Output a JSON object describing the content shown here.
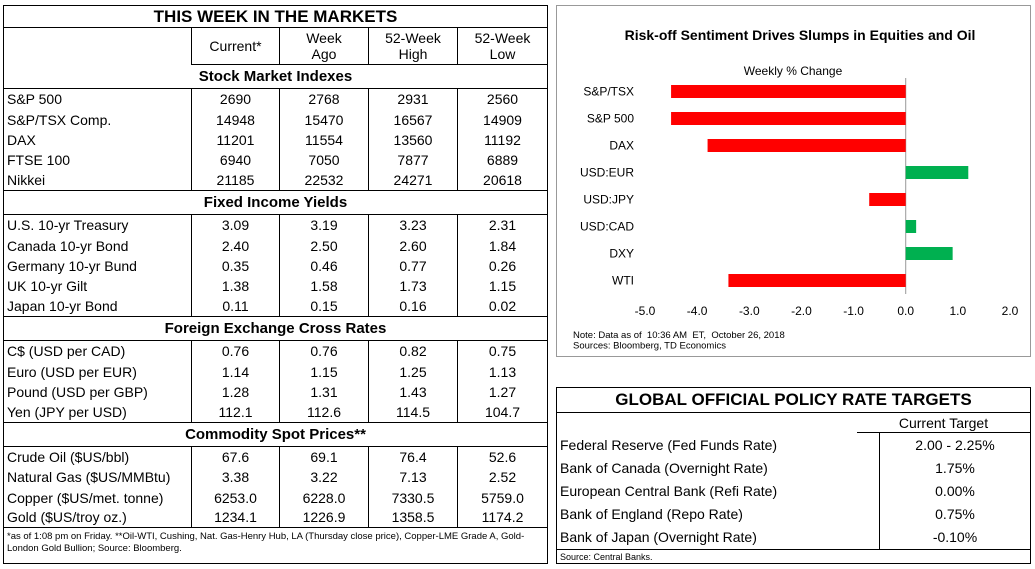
{
  "markets_table": {
    "title": "THIS WEEK IN THE MARKETS",
    "columns": [
      "Current*",
      "Week Ago",
      "52-Week High",
      "52-Week Low"
    ],
    "sections": [
      {
        "title": "Stock Market Indexes",
        "rows": [
          [
            "S&P 500",
            "2690",
            "2768",
            "2931",
            "2560"
          ],
          [
            "S&P/TSX Comp.",
            "14948",
            "15470",
            "16567",
            "14909"
          ],
          [
            "DAX",
            "11201",
            "11554",
            "13560",
            "11192"
          ],
          [
            "FTSE 100",
            "6940",
            "7050",
            "7877",
            "6889"
          ],
          [
            "Nikkei",
            "21185",
            "22532",
            "24271",
            "20618"
          ]
        ]
      },
      {
        "title": "Fixed Income Yields",
        "rows": [
          [
            "U.S. 10-yr Treasury",
            "3.09",
            "3.19",
            "3.23",
            "2.31"
          ],
          [
            "Canada 10-yr Bond",
            "2.40",
            "2.50",
            "2.60",
            "1.84"
          ],
          [
            "Germany 10-yr Bund",
            "0.35",
            "0.46",
            "0.77",
            "0.26"
          ],
          [
            "UK 10-yr Gilt",
            "1.38",
            "1.58",
            "1.73",
            "1.15"
          ],
          [
            "Japan 10-yr Bond",
            "0.11",
            "0.15",
            "0.16",
            "0.02"
          ]
        ]
      },
      {
        "title": "Foreign Exchange Cross Rates",
        "rows": [
          [
            "C$ (USD per CAD)",
            "0.76",
            "0.76",
            "0.82",
            "0.75"
          ],
          [
            "Euro (USD per EUR)",
            "1.14",
            "1.15",
            "1.25",
            "1.13"
          ],
          [
            "Pound (USD per GBP)",
            "1.28",
            "1.31",
            "1.43",
            "1.27"
          ],
          [
            "Yen (JPY per USD)",
            "112.1",
            "112.6",
            "114.5",
            "104.7"
          ]
        ]
      },
      {
        "title": "Commodity Spot Prices**",
        "rows": [
          [
            "Crude Oil ($US/bbl)",
            "67.6",
            "69.1",
            "76.4",
            "52.6"
          ],
          [
            "Natural Gas ($US/MMBtu)",
            "3.38",
            "3.22",
            "7.13",
            "2.52"
          ],
          [
            "Copper ($US/met. tonne)",
            "6253.0",
            "6228.0",
            "7330.5",
            "5759.0"
          ],
          [
            "Gold ($US/troy oz.)",
            "1234.1",
            "1226.9",
            "1358.5",
            "1174.2"
          ]
        ]
      }
    ],
    "footnote": "*as of 1:08 pm on Friday. **Oil-WTI, Cushing, Nat. Gas-Henry Hub, LA (Thursday close price), Copper-LME Grade A, Gold-London Gold Bullion; Source: Bloomberg."
  },
  "chart_data": {
    "type": "bar",
    "orientation": "horizontal",
    "title": "Risk-off Sentiment Drives Slumps in Equities and Oil",
    "subtitle": "Weekly % Change",
    "categories": [
      "S&P/TSX",
      "S&P 500",
      "DAX",
      "USD:EUR",
      "USD:JPY",
      "USD:CAD",
      "DXY",
      "WTI"
    ],
    "values": [
      -4.5,
      -4.5,
      -3.8,
      1.2,
      -0.7,
      0.2,
      0.9,
      -3.4
    ],
    "colors": [
      "#ff0000",
      "#ff0000",
      "#ff0000",
      "#00b050",
      "#ff0000",
      "#00b050",
      "#00b050",
      "#ff0000"
    ],
    "xlim": [
      -5,
      2
    ],
    "xticks": [
      {
        "value": -5,
        "label": "-5.0"
      },
      {
        "value": -4,
        "label": "-4.0"
      },
      {
        "value": -3,
        "label": "-3.0"
      },
      {
        "value": -2,
        "label": "-2.0"
      },
      {
        "value": -1,
        "label": "-1.0"
      },
      {
        "value": 0,
        "label": "0.0"
      },
      {
        "value": 1,
        "label": "1.0"
      },
      {
        "value": 2,
        "label": "2.0"
      }
    ],
    "notes": [
      "Note: Data as of  10:36 AM  ET,  October 26, 2018",
      "Sources: Bloomberg, TD Economics"
    ]
  },
  "policy_table": {
    "title": "GLOBAL OFFICIAL POLICY RATE TARGETS",
    "column": "Current Target",
    "rows": [
      [
        "Federal Reserve (Fed Funds Rate)",
        "2.00 - 2.25%"
      ],
      [
        "Bank of Canada (Overnight Rate)",
        "1.75%"
      ],
      [
        "European Central Bank (Refi Rate)",
        "0.00%"
      ],
      [
        "Bank of England (Repo Rate)",
        "0.75%"
      ],
      [
        "Bank of Japan (Overnight Rate)",
        "-0.10%"
      ]
    ],
    "source": "Source: Central Banks."
  }
}
